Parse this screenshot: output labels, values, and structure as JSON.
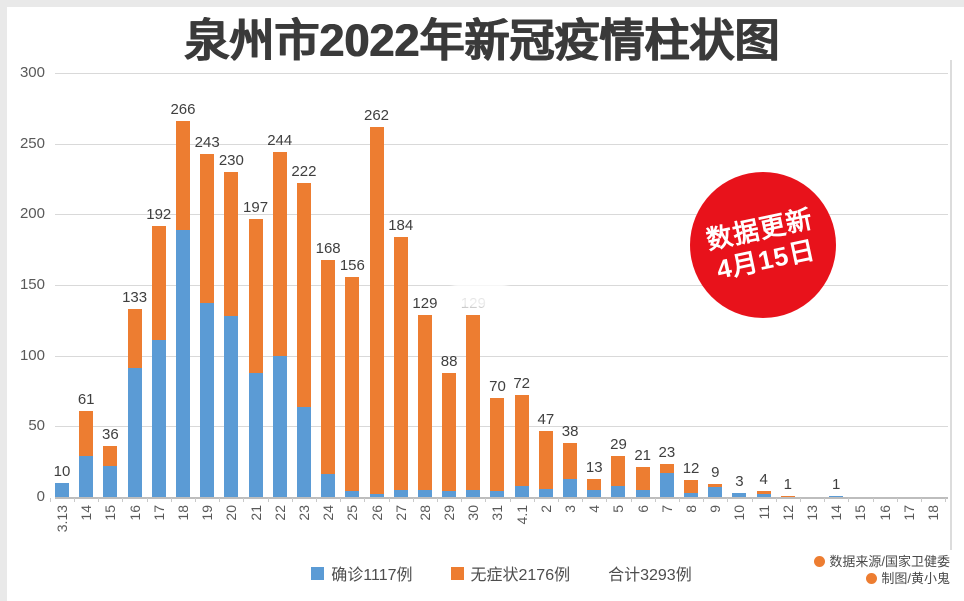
{
  "title": "泉州市2022年新冠疫情柱状图",
  "badge": {
    "line1": "数据更新",
    "line2": "4月15日",
    "color": "#e8121b",
    "text_color": "#ffffff"
  },
  "legend": {
    "confirmed": "确诊1117例",
    "asymptomatic": "无症状2176例",
    "total": "合计3293例"
  },
  "source": {
    "line1": "数据来源/国家卫健委",
    "line2": "制图/黄小鬼"
  },
  "colors": {
    "confirmed": "#5B9BD5",
    "asymptomatic": "#ED7D31",
    "gridline": "#d9d9d9",
    "axis_text": "#595959"
  },
  "chart_data": {
    "type": "bar",
    "stacked": true,
    "title": "泉州市2022年新冠疫情柱状图",
    "xlabel": "",
    "ylabel": "",
    "ylim": [
      0,
      300
    ],
    "yticks": [
      0,
      50,
      100,
      150,
      200,
      250,
      300
    ],
    "grid": true,
    "legend_position": "bottom",
    "categories": [
      "3.13",
      "14",
      "15",
      "16",
      "17",
      "18",
      "19",
      "20",
      "21",
      "22",
      "23",
      "24",
      "25",
      "26",
      "27",
      "28",
      "29",
      "30",
      "31",
      "4.1",
      "2",
      "3",
      "4",
      "5",
      "6",
      "7",
      "8",
      "9",
      "10",
      "11",
      "12",
      "13",
      "14",
      "15",
      "16",
      "17",
      "18"
    ],
    "series": [
      {
        "name": "确诊",
        "color": "#5B9BD5",
        "values": [
          10,
          29,
          22,
          91,
          111,
          189,
          137,
          128,
          88,
          100,
          64,
          16,
          4,
          2,
          5,
          5,
          4,
          5,
          4,
          8,
          6,
          13,
          5,
          8,
          5,
          17,
          3,
          7,
          3,
          2,
          0,
          0,
          1,
          0,
          0,
          0,
          0
        ]
      },
      {
        "name": "无症状",
        "color": "#ED7D31",
        "values": [
          0,
          32,
          14,
          42,
          81,
          77,
          106,
          102,
          109,
          144,
          158,
          152,
          152,
          260,
          179,
          124,
          84,
          124,
          66,
          64,
          41,
          25,
          8,
          21,
          16,
          6,
          9,
          2,
          0,
          2,
          1,
          0,
          0,
          0,
          0,
          0,
          0
        ]
      }
    ],
    "totals": [
      10,
      61,
      36,
      133,
      192,
      266,
      243,
      230,
      197,
      244,
      222,
      168,
      156,
      262,
      184,
      129,
      88,
      129,
      70,
      72,
      47,
      38,
      13,
      29,
      21,
      23,
      12,
      9,
      3,
      4,
      1,
      0,
      1,
      0,
      0,
      0,
      0
    ],
    "labels": [
      "10",
      "61",
      "36",
      "133",
      "192",
      "266",
      "243",
      "230",
      "197",
      "244",
      "222",
      "168",
      "156",
      "262",
      "184",
      "129",
      "88",
      "129",
      "70",
      "72",
      "47",
      "38",
      "13",
      "29",
      "21",
      "23",
      "12",
      "9",
      "3",
      "4",
      "1",
      "",
      "1",
      "",
      "",
      "",
      ""
    ],
    "obscured_label_index": 17,
    "note": "label above 3.30 bar is partially smudged/whited-out in original image"
  }
}
